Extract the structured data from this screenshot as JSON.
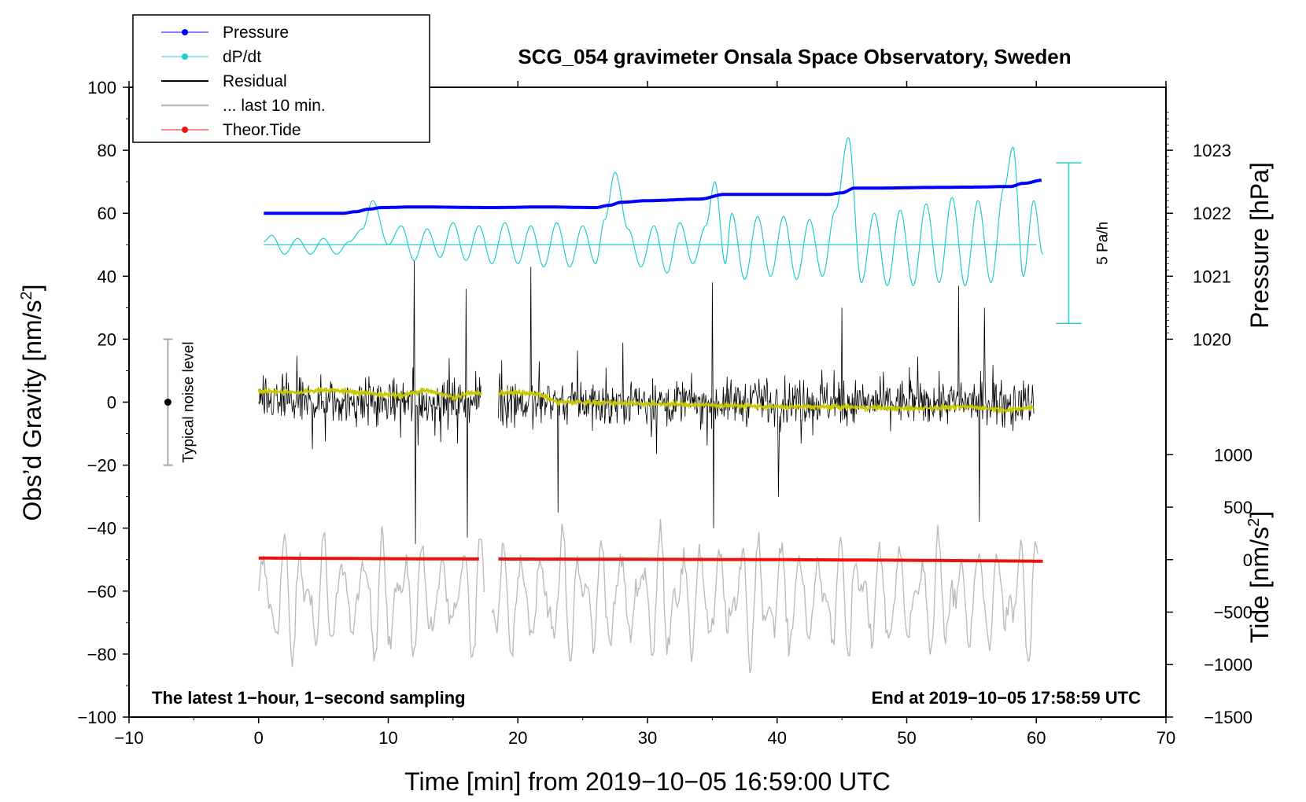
{
  "chart_data": {
    "type": "line",
    "title": "SCG_054 gravimeter Onsala Space Observatory, Sweden",
    "xlabel": "Time [min] from 2019−10−05 16:59:00 UTC",
    "ylabel": "Obs’d Gravity [nm/s²]",
    "ylabel_main": "Obs’d Gravity [nm/s",
    "ylabel_sup": "2",
    "ylabel_close": "]",
    "right_top_label": "Pressure [hPa]",
    "right_bottom_label_main": "Tide [nm/s",
    "right_bottom_label_sup": "2",
    "right_bottom_label_close": "]",
    "xlim": [
      -10,
      70
    ],
    "ylim": [
      -100,
      100
    ],
    "x_ticks": [
      -10,
      0,
      10,
      20,
      30,
      40,
      50,
      60,
      70
    ],
    "x_tick_labels": [
      "−10",
      "0",
      "10",
      "20",
      "30",
      "40",
      "50",
      "60",
      "70"
    ],
    "y_ticks": [
      -100,
      -80,
      -60,
      -40,
      -20,
      0,
      20,
      40,
      60,
      80,
      100
    ],
    "y_tick_labels": [
      "−100",
      "−80",
      "−60",
      "−40",
      "−20",
      "0",
      "20",
      "40",
      "60",
      "80",
      "100"
    ],
    "pressure_axis": {
      "ticks": [
        1020,
        1021,
        1022,
        1023
      ],
      "tick_labels": [
        "1020",
        "1021",
        "1022",
        "1023"
      ],
      "gravity_at_1020": 20,
      "gravity_per_hpa": 20
    },
    "tide_axis": {
      "ticks": [
        -1500,
        -1000,
        -500,
        0,
        500,
        1000
      ],
      "tick_labels": [
        "−1500",
        "−1000",
        "−500",
        "0",
        "500",
        "1000"
      ],
      "gravity_at_0": -50,
      "gravity_per_unit": 0.03333
    },
    "legend": [
      "Pressure",
      "dP/dt",
      "Residual",
      "... last 10 min.",
      "Theor.Tide"
    ],
    "annotations": {
      "sampling_note": "The latest 1−hour, 1−second sampling",
      "end_note": "End at 2019−10−05 17:58:59 UTC",
      "noise_label": "Typical noise level",
      "scale_label": "5 Pa/h"
    },
    "noise_bar": {
      "x": -7,
      "center": 0,
      "low": -20,
      "high": 20
    },
    "dpdt_scale_bar": {
      "x": 62.5,
      "low": 25,
      "high": 76
    },
    "series": [
      {
        "name": "Pressure",
        "color": "#0000ff",
        "x": [
          0.4,
          6.5,
          7.5,
          8.5,
          9.5,
          12,
          18,
          22,
          26,
          27,
          28,
          30,
          34,
          36,
          41,
          44,
          45,
          46,
          48,
          52,
          55,
          58,
          59,
          60.5
        ],
        "y": [
          60,
          60,
          60.5,
          61.3,
          61.8,
          62,
          61.8,
          62,
          61.8,
          62.5,
          63.5,
          64,
          64.5,
          66,
          66,
          66,
          66.5,
          68,
          68,
          68.2,
          68.3,
          68.5,
          69.5,
          70.5
        ]
      },
      {
        "name": "dP/dt",
        "color": "#22cccc",
        "baseline": 50,
        "x": [
          0.4,
          1,
          2,
          3,
          4,
          5,
          6,
          7,
          8,
          8.8,
          10,
          11,
          12,
          13,
          14,
          15,
          16,
          17,
          18,
          19,
          20,
          21,
          22,
          23,
          24,
          25,
          26,
          26.7,
          27.5,
          28.5,
          29.5,
          30.5,
          31.5,
          32.5,
          33.5,
          34.5,
          35.2,
          36,
          36.5,
          37.5,
          38.5,
          39.5,
          40.5,
          41.5,
          42.5,
          43.5,
          44.5,
          45.5,
          46.5,
          47.5,
          48.5,
          49.5,
          50.5,
          51.5,
          52.5,
          53.5,
          54.5,
          55.5,
          56.5,
          57.5,
          58.2,
          59,
          59.8,
          60.5
        ],
        "y": [
          51,
          53,
          47,
          52,
          47,
          52,
          47,
          51,
          55,
          64,
          50,
          56,
          45,
          55,
          46,
          57,
          45,
          56,
          44,
          57,
          44,
          56,
          43,
          57,
          43,
          56,
          44,
          58,
          73,
          55,
          43,
          56,
          41,
          57,
          44,
          56,
          70,
          44,
          60,
          39,
          59,
          40,
          59,
          39,
          58,
          40,
          61,
          84,
          38,
          60,
          37,
          61,
          37,
          63,
          38,
          65,
          37,
          64,
          38,
          68,
          81,
          40,
          64,
          47
        ]
      },
      {
        "name": "Residual",
        "color": "#000000",
        "segments": [
          [
            0,
            17.2
          ],
          [
            18.5,
            59.8
          ]
        ],
        "typical_range": [
          -20,
          25
        ],
        "spike_max": 45,
        "spike_min": -45
      },
      {
        "name": "Residual running mean",
        "color": "#c8c800",
        "x": [
          0,
          3,
          5,
          8,
          11,
          13,
          15,
          16.5,
          17.2,
          18.5,
          21,
          22,
          23,
          26,
          30,
          36,
          40,
          45,
          50,
          55,
          58,
          59.8
        ],
        "y": [
          3.5,
          3,
          4,
          3,
          2,
          4,
          1.5,
          3,
          2.5,
          3,
          3,
          2,
          0,
          0,
          -0.5,
          -1,
          -1.5,
          -1.5,
          -2,
          -1.5,
          -2.5,
          -1.5
        ]
      },
      {
        "name": "... last 10 min.",
        "color": "#bbbbbb",
        "segments": [
          [
            0,
            17.4
          ],
          [
            18,
            60.2
          ]
        ],
        "range": [
          -90,
          -30
        ]
      },
      {
        "name": "Theor.Tide",
        "color": "#ee1111",
        "x": [
          0,
          10,
          17.4,
          18.5,
          30,
          40,
          50,
          60.5
        ],
        "y": [
          -49.5,
          -49.7,
          -49.8,
          -49.8,
          -49.9,
          -50,
          -50.2,
          -50.5
        ]
      }
    ]
  }
}
